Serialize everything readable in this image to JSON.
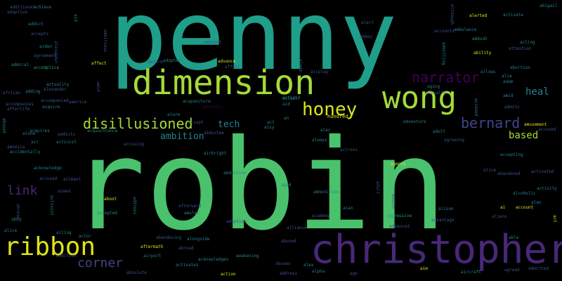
{
  "palette": {
    "background": "#000000",
    "yellow": "#dde318",
    "lime": "#a5db36",
    "green": "#4ac16d",
    "teal": "#1f9e89",
    "cyan": "#26828e",
    "blue": "#3b528b",
    "indigo": "#414487",
    "purple": "#482878",
    "dark": "#440154"
  },
  "words": {
    "robin": "robin",
    "penny": "penny",
    "christopher": "christopher",
    "dimension": "dimension",
    "wong": "wong",
    "ribbon": "ribbon",
    "honey": "honey",
    "narrator": "narrator",
    "disillusioned": "disillusioned",
    "bernard": "bernard",
    "link": "link",
    "corner": "corner",
    "heal": "heal",
    "based": "based",
    "ambition": "ambition",
    "tech": "tech",
    "additional": "additional",
    "adaptive": "adaptive",
    "achieve": "achieve",
    "addict": "addict",
    "accepts": "accepts",
    "aiden": "aiden",
    "agreement": "agreement",
    "admiral": "admiral",
    "accomplice": "accomplice",
    "affect": "affect",
    "advance": "advance",
    "adopted": "adopted",
    "aboard": "aboard",
    "actuality": "actuality",
    "alexander": "alexander",
    "african": "african",
    "adding": "adding",
    "accompanies": "accompanies",
    "afterlife": "afterlife",
    "accompanied": "accompanied",
    "america": "america",
    "acquire": "acquire",
    "acquires": "acquires",
    "acquaintance": "acquaintance",
    "alone": "alone",
    "addicts": "addicts",
    "air": "air",
    "activist": "activist",
    "amnesia": "amnesia",
    "accidentally": "accidentally",
    "acknowledge": "acknowledge",
    "accused": "accused",
    "ailment": "ailment",
    "aimed": "aimed",
    "abby": "abby",
    "alice": "alice",
    "ailing": "ailing",
    "addition": "addition",
    "actor": "actor",
    "aftermath": "aftermath",
    "abandoning": "abandoning",
    "airport": "airport",
    "activates": "activates",
    "acknowledges": "acknowledges",
    "alongside": "alongside",
    "abroad": "abroad",
    "action": "action",
    "awakening": "awakening",
    "abused": "abused",
    "abuses": "abuses",
    "alex": "alex",
    "alpha": "alpha",
    "aircraft": "aircraft",
    "aim": "aim",
    "agreed": "agreed",
    "admitted": "admitted",
    "activated": "activated",
    "absolute": "absolute",
    "aboot": "aboot",
    "accepted": "accepted",
    "amulet": "amulet",
    "afterward": "afterward",
    "adoption": "adoption",
    "aged": "aged",
    "ammunition": "ammunition",
    "aian": "aian",
    "aggressive": "aggressive",
    "advanced": "advanced",
    "academy": "academy",
    "alliance": "alliance",
    "accept": "accept",
    "adult": "adult",
    "agreeing": "agreeing",
    "accepting": "accepting",
    "adventure": "adventure",
    "alec": "alec",
    "always": "always",
    "hundred": "hundred",
    "actress": "actress",
    "alarm": "alarm",
    "abduction": "abduction",
    "airbright": "airbright",
    "accusing": "accusing",
    "abductee": "abductee",
    "aisy": "aisy",
    "act": "act",
    "actioid": "actioid",
    "agency": "agency",
    "alive": "alive",
    "abandoned": "abandoned",
    "activity": "activity",
    "alcoholic": "alcoholic",
    "alison": "alison",
    "advantage": "advantage",
    "aliens": "aliens",
    "alan": "alan",
    "account": "account",
    "able": "able",
    "ai": "ai",
    "abigail": "abigail",
    "activate": "activate",
    "alerted": "alerted",
    "although": "although",
    "accounts": "accounts",
    "ambulance": "ambulance",
    "acting": "acting",
    "ambush": "ambush",
    "attention": "attention",
    "ability": "ability",
    "allows": "allows",
    "abortion": "abortion",
    "alia": "alia",
    "aging": "aging",
    "actually": "actually",
    "amid": "amid",
    "adam": "adam",
    "amusement": "amusement",
    "accused2": "accused",
    "ambitious": "ambitious",
    "admitting": "admitting",
    "admits": "admits",
    "ambient": "ambient",
    "abbey": "abbey",
    "alert": "alert",
    "affair": "affair",
    "acupuncture": "acupuncture",
    "adriatic": "adriatic",
    "airplay": "airplay",
    "actual": "actual",
    "aid": "aid",
    "an": "an",
    "address": "address",
    "age": "age"
  }
}
